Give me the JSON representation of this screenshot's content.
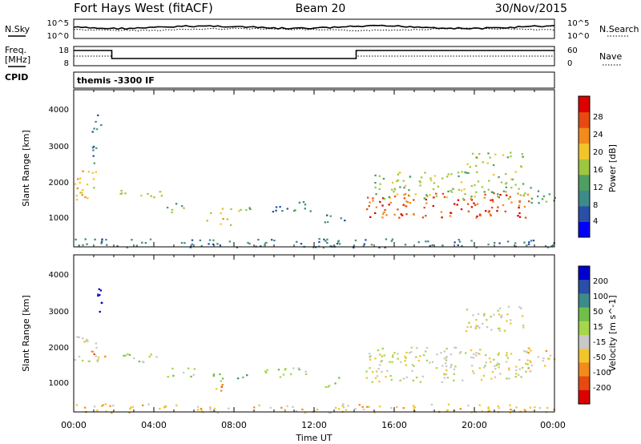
{
  "header": {
    "station": "Fort Hays West (fitACF)",
    "beam": "Beam 20",
    "date": "30/Nov/2015"
  },
  "noise_panel": {
    "left_label": "N.Sky",
    "right_label": "N.Search",
    "left_ticks": [
      "10^5",
      "10^0"
    ],
    "right_ticks": [
      "10^5",
      "10^0"
    ]
  },
  "freq_panel": {
    "left_label_1": "Freq.",
    "left_label_2": "[MHz]",
    "right_label": "Nave",
    "left_ticks": [
      "18",
      "8"
    ],
    "right_ticks": [
      "60",
      "0"
    ],
    "cpid_label": "CPID"
  },
  "cpid_text": "themis -3300 IF",
  "time_axis": {
    "label": "Time UT",
    "ticks": [
      "00:00",
      "04:00",
      "08:00",
      "12:00",
      "16:00",
      "20:00",
      "00:00"
    ]
  },
  "chart_data": [
    {
      "type": "heatmap",
      "name": "power",
      "ylabel": "Slant Range [km]",
      "y_ticks": [
        "1000",
        "2000",
        "3000",
        "4000"
      ],
      "ylim": [
        180,
        4500
      ],
      "xlim_hours": [
        0,
        24
      ],
      "colorbar": {
        "label": "Power [dB]",
        "ticks": [
          "4",
          "8",
          "12",
          "16",
          "20",
          "24",
          "28"
        ],
        "colors": [
          "#0000ff",
          "#2a4fa8",
          "#3d8a8a",
          "#4f9e62",
          "#9fc640",
          "#f2c62a",
          "#f08b1c",
          "#e64a12",
          "#dd0000"
        ]
      },
      "regions": [
        {
          "t": [
            0.0,
            1.2
          ],
          "r": [
            1500,
            2300
          ],
          "c": 5
        },
        {
          "t": [
            0.9,
            1.4
          ],
          "r": [
            2500,
            3900
          ],
          "c": 2
        },
        {
          "t": [
            2.3,
            4.5
          ],
          "r": [
            1550,
            1800
          ],
          "c": 4
        },
        {
          "t": [
            4.5,
            6.0
          ],
          "r": [
            1150,
            1450
          ],
          "c": 3
        },
        {
          "t": [
            6.5,
            7.8
          ],
          "r": [
            800,
            1050
          ],
          "c": 5
        },
        {
          "t": [
            6.8,
            8.8
          ],
          "r": [
            1050,
            1300
          ],
          "c": 4
        },
        {
          "t": [
            9.5,
            11.8
          ],
          "r": [
            1150,
            1450
          ],
          "c": 2
        },
        {
          "t": [
            12.5,
            13.5
          ],
          "r": [
            850,
            1150
          ],
          "c": 2
        },
        {
          "t": [
            14.5,
            22.8
          ],
          "r": [
            1000,
            1700
          ],
          "c": 7
        },
        {
          "t": [
            15.0,
            22.5
          ],
          "r": [
            1500,
            2300
          ],
          "c": 4
        },
        {
          "t": [
            19.5,
            22.5
          ],
          "r": [
            2400,
            2800
          ],
          "c": 4
        },
        {
          "t": [
            22.5,
            24.0
          ],
          "r": [
            1400,
            1900
          ],
          "c": 3
        },
        {
          "t": [
            0.0,
            24.0
          ],
          "r": [
            180,
            420
          ],
          "c": 2
        }
      ]
    },
    {
      "type": "heatmap",
      "name": "velocity",
      "ylabel": "Slant Range [km]",
      "y_ticks": [
        "1000",
        "2000",
        "3000",
        "4000"
      ],
      "ylim": [
        180,
        4500
      ],
      "xlim_hours": [
        0,
        24
      ],
      "colorbar": {
        "label": "Velocity [m s^-1]",
        "ticks": [
          "200",
          "100",
          "50",
          "15",
          "-15",
          "-50",
          "-100",
          "-200"
        ],
        "colors": [
          "#0000cc",
          "#2a4fa8",
          "#3d8a8a",
          "#6fbf4a",
          "#a6d64a",
          "#c8c8c8",
          "#f2c62a",
          "#f08b1c",
          "#e64a12",
          "#dd0000"
        ]
      },
      "regions": [
        {
          "t": [
            0.0,
            1.2
          ],
          "r": [
            1500,
            2300
          ],
          "c": 5
        },
        {
          "t": [
            1.0,
            1.4
          ],
          "r": [
            2900,
            3900
          ],
          "c": 0
        },
        {
          "t": [
            0.8,
            1.6
          ],
          "r": [
            1650,
            1900
          ],
          "c": 7
        },
        {
          "t": [
            2.3,
            4.5
          ],
          "r": [
            1550,
            1800
          ],
          "c": 4
        },
        {
          "t": [
            4.5,
            6.0
          ],
          "r": [
            1150,
            1450
          ],
          "c": 4
        },
        {
          "t": [
            6.5,
            7.8
          ],
          "r": [
            750,
            1000
          ],
          "c": 7
        },
        {
          "t": [
            6.8,
            8.8
          ],
          "r": [
            1050,
            1300
          ],
          "c": 3
        },
        {
          "t": [
            9.5,
            11.8
          ],
          "r": [
            1150,
            1450
          ],
          "c": 4
        },
        {
          "t": [
            12.5,
            13.5
          ],
          "r": [
            850,
            1150
          ],
          "c": 4
        },
        {
          "t": [
            14.5,
            22.8
          ],
          "r": [
            1000,
            2000
          ],
          "c": 5
        },
        {
          "t": [
            19.5,
            22.5
          ],
          "r": [
            2400,
            3100
          ],
          "c": 5
        },
        {
          "t": [
            22.5,
            24.0
          ],
          "r": [
            1400,
            1900
          ],
          "c": 6
        },
        {
          "t": [
            0.0,
            24.0
          ],
          "r": [
            180,
            420
          ],
          "c": 6
        }
      ]
    }
  ]
}
